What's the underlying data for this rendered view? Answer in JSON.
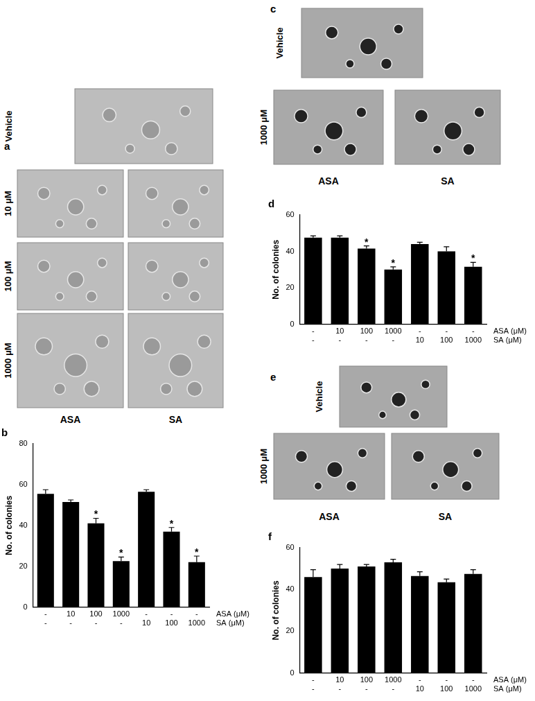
{
  "image_panels": [
    {
      "label": "a",
      "vehicle": "Vehicle",
      "rows": [
        "10 μM",
        "100 μM",
        "1000 μM"
      ],
      "columns": [
        "ASA",
        "SA"
      ]
    },
    {
      "label": "c",
      "vehicle": "Vehicle",
      "rows": [
        "1000 μM"
      ],
      "columns": [
        "ASA",
        "SA"
      ]
    },
    {
      "label": "e",
      "vehicle": "Vehicle",
      "rows": [
        "1000 μM"
      ],
      "columns": [
        "ASA",
        "SA"
      ]
    }
  ],
  "chart_data": [
    {
      "type": "bar",
      "title": "b",
      "y_label": "No. of colonies",
      "categories": [
        [
          "-",
          "-"
        ],
        [
          "10",
          "-"
        ],
        [
          "100",
          "-"
        ],
        [
          "1000",
          "-"
        ],
        [
          "-",
          "10"
        ],
        [
          "-",
          "100"
        ],
        [
          "-",
          "1000"
        ]
      ],
      "category_rows": [
        "ASA (μM)",
        "SA (μM)"
      ],
      "values": [
        55.5,
        51.5,
        41,
        22.5,
        56.5,
        37,
        22
      ],
      "errors": [
        2,
        1,
        2.5,
        2,
        1,
        2,
        3
      ],
      "annotations": [
        null,
        null,
        "*",
        "*",
        null,
        "*",
        "*"
      ],
      "color": "#000000",
      "ylim": [
        0,
        80
      ],
      "yticks": [
        0,
        20,
        40,
        60,
        80
      ],
      "grid": false
    },
    {
      "type": "bar",
      "title": "d",
      "y_label": "No. of colonies",
      "categories": [
        [
          "-",
          "-"
        ],
        [
          "10",
          "-"
        ],
        [
          "100",
          "-"
        ],
        [
          "1000",
          "-"
        ],
        [
          "-",
          "10"
        ],
        [
          "-",
          "100"
        ],
        [
          "-",
          "1000"
        ]
      ],
      "category_rows": [
        "ASA (μM)",
        "SA (μM)"
      ],
      "values": [
        47.5,
        47.5,
        41.5,
        30,
        44,
        40,
        31.5
      ],
      "errors": [
        1,
        1,
        1.5,
        1.5,
        1,
        2.5,
        2.5
      ],
      "annotations": [
        null,
        null,
        "*",
        "*",
        null,
        null,
        "*"
      ],
      "color": "#000000",
      "ylim": [
        0,
        60
      ],
      "yticks": [
        0,
        20,
        40,
        60
      ],
      "grid": false
    },
    {
      "type": "bar",
      "title": "f",
      "y_label": "No. of colonies",
      "categories": [
        [
          "-",
          "-"
        ],
        [
          "10",
          "-"
        ],
        [
          "100",
          "-"
        ],
        [
          "1000",
          "-"
        ],
        [
          "-",
          "10"
        ],
        [
          "-",
          "100"
        ],
        [
          "-",
          "1000"
        ]
      ],
      "category_rows": [
        "ASA (μM)",
        "SA (μM)"
      ],
      "values": [
        46,
        50,
        51,
        53,
        46.5,
        43.5,
        47.5
      ],
      "errors": [
        3.5,
        2,
        1,
        1.5,
        2,
        1.5,
        2
      ],
      "color": "#000000",
      "ylim": [
        0,
        60
      ],
      "yticks": [
        0,
        20,
        40,
        60
      ],
      "grid": false
    }
  ]
}
